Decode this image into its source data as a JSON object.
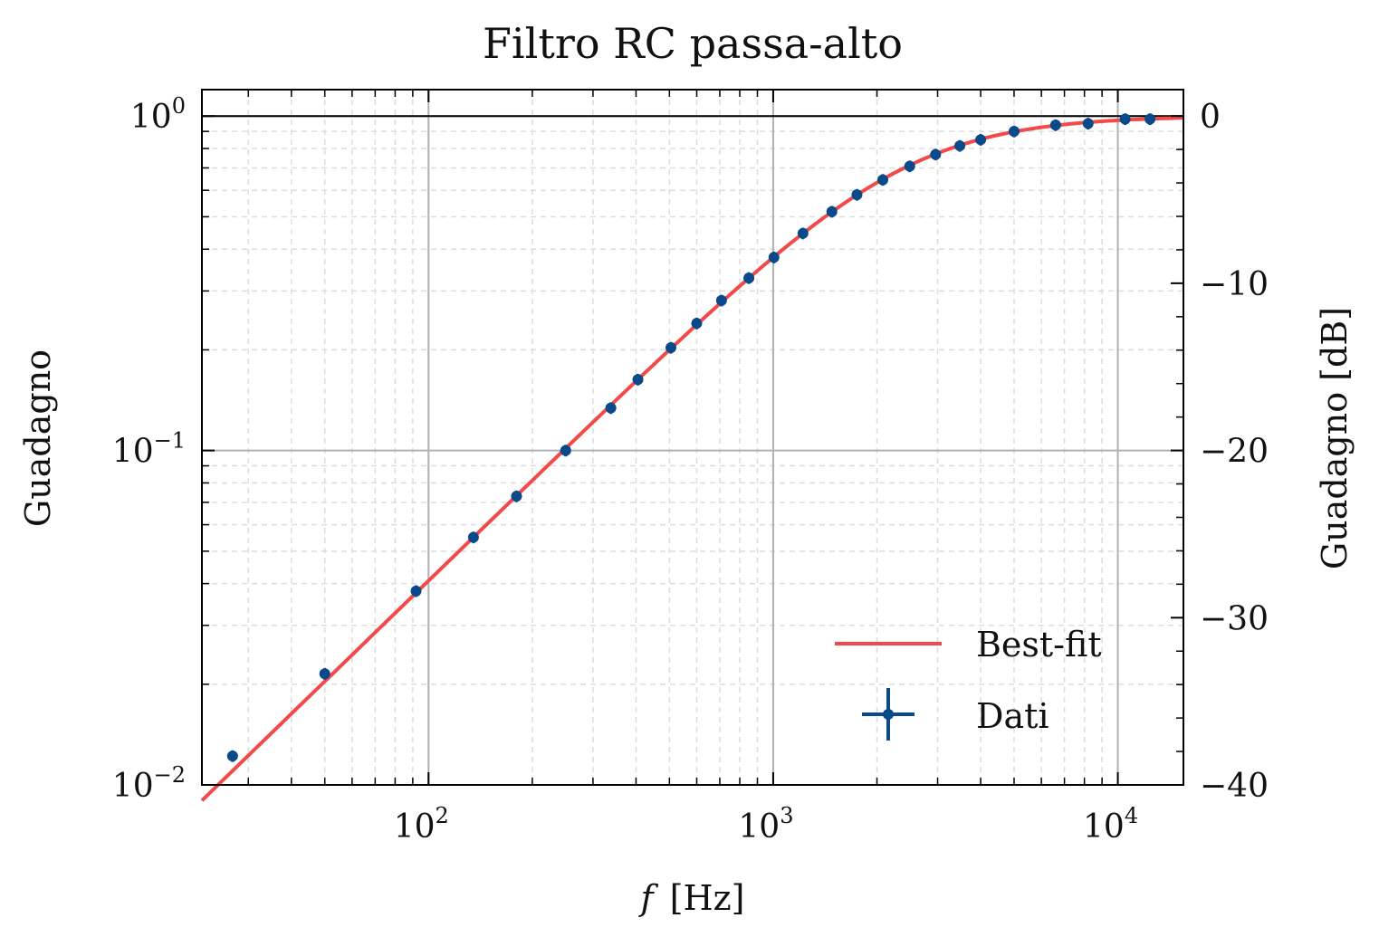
{
  "chart_data": {
    "type": "scatter",
    "title": "Filtro RC passa-alto",
    "xlabel_var": "f",
    "xlabel_unit": "[Hz]",
    "ylabel": "Guadagno",
    "ylabel_right": "Guadagno [dB]",
    "x_scale": "log",
    "y_scale": "log",
    "xlim": [
      22,
      15500
    ],
    "ylim": [
      0.01,
      1.2
    ],
    "ylim_right_db": [
      -40,
      1.58
    ],
    "x_ticks": [
      {
        "value": 100,
        "base": "10",
        "exp": "2"
      },
      {
        "value": 1000,
        "base": "10",
        "exp": "3"
      },
      {
        "value": 10000,
        "base": "10",
        "exp": "4"
      }
    ],
    "y_ticks": [
      {
        "value": 0.01,
        "base": "10",
        "exp": "−2"
      },
      {
        "value": 0.1,
        "base": "10",
        "exp": "−1"
      },
      {
        "value": 1,
        "base": "10",
        "exp": "0"
      }
    ],
    "y_right_ticks": [
      {
        "value": 0,
        "label": "0"
      },
      {
        "value": -10,
        "label": "−10"
      },
      {
        "value": -20,
        "label": "−20"
      },
      {
        "value": -30,
        "label": "−30"
      },
      {
        "value": -40,
        "label": "−40"
      }
    ],
    "reference_line_y": 1,
    "grid": true,
    "legend": "bottom-right",
    "colors": {
      "fit": "#f24a4a",
      "data": "#0a4a8a",
      "grid_major": "#b0b0b0",
      "grid_minor": "#dddddd"
    },
    "series": [
      {
        "name": "Best-fit",
        "kind": "line",
        "cutoff_hz": 2450,
        "x_range": [
          22,
          15500
        ]
      },
      {
        "name": "Dati",
        "kind": "errorbar",
        "x": [
          27,
          50,
          92,
          135,
          180,
          250,
          338,
          405,
          505,
          600,
          708,
          850,
          1005,
          1220,
          1480,
          1750,
          2080,
          2490,
          2960,
          3480,
          4000,
          5000,
          6600,
          8200,
          10500,
          12400
        ],
        "y": [
          0.0122,
          0.0215,
          0.038,
          0.055,
          0.073,
          0.1,
          0.134,
          0.163,
          0.203,
          0.24,
          0.281,
          0.328,
          0.378,
          0.446,
          0.518,
          0.582,
          0.645,
          0.708,
          0.768,
          0.815,
          0.85,
          0.9,
          0.94,
          0.95,
          0.98,
          0.98
        ],
        "yerr_frac": 0.04
      }
    ]
  }
}
